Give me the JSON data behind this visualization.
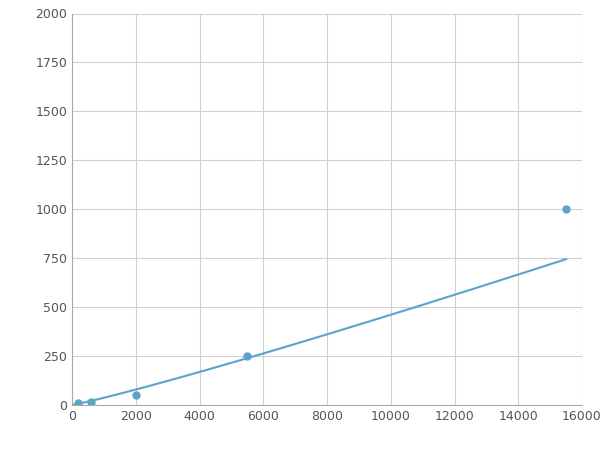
{
  "x": [
    200,
    600,
    2000,
    5500,
    15500
  ],
  "y": [
    10,
    15,
    50,
    250,
    1000
  ],
  "line_color": "#5ba3c9",
  "marker_color": "#5ba3c9",
  "marker_size": 5,
  "line_width": 1.5,
  "xlim": [
    0,
    16000
  ],
  "ylim": [
    0,
    2000
  ],
  "xticks": [
    0,
    2000,
    4000,
    6000,
    8000,
    10000,
    12000,
    14000,
    16000
  ],
  "yticks": [
    0,
    250,
    500,
    750,
    1000,
    1250,
    1500,
    1750,
    2000
  ],
  "grid_color": "#d0d0d0",
  "background_color": "#ffffff",
  "figsize": [
    6.0,
    4.5
  ],
  "dpi": 100
}
